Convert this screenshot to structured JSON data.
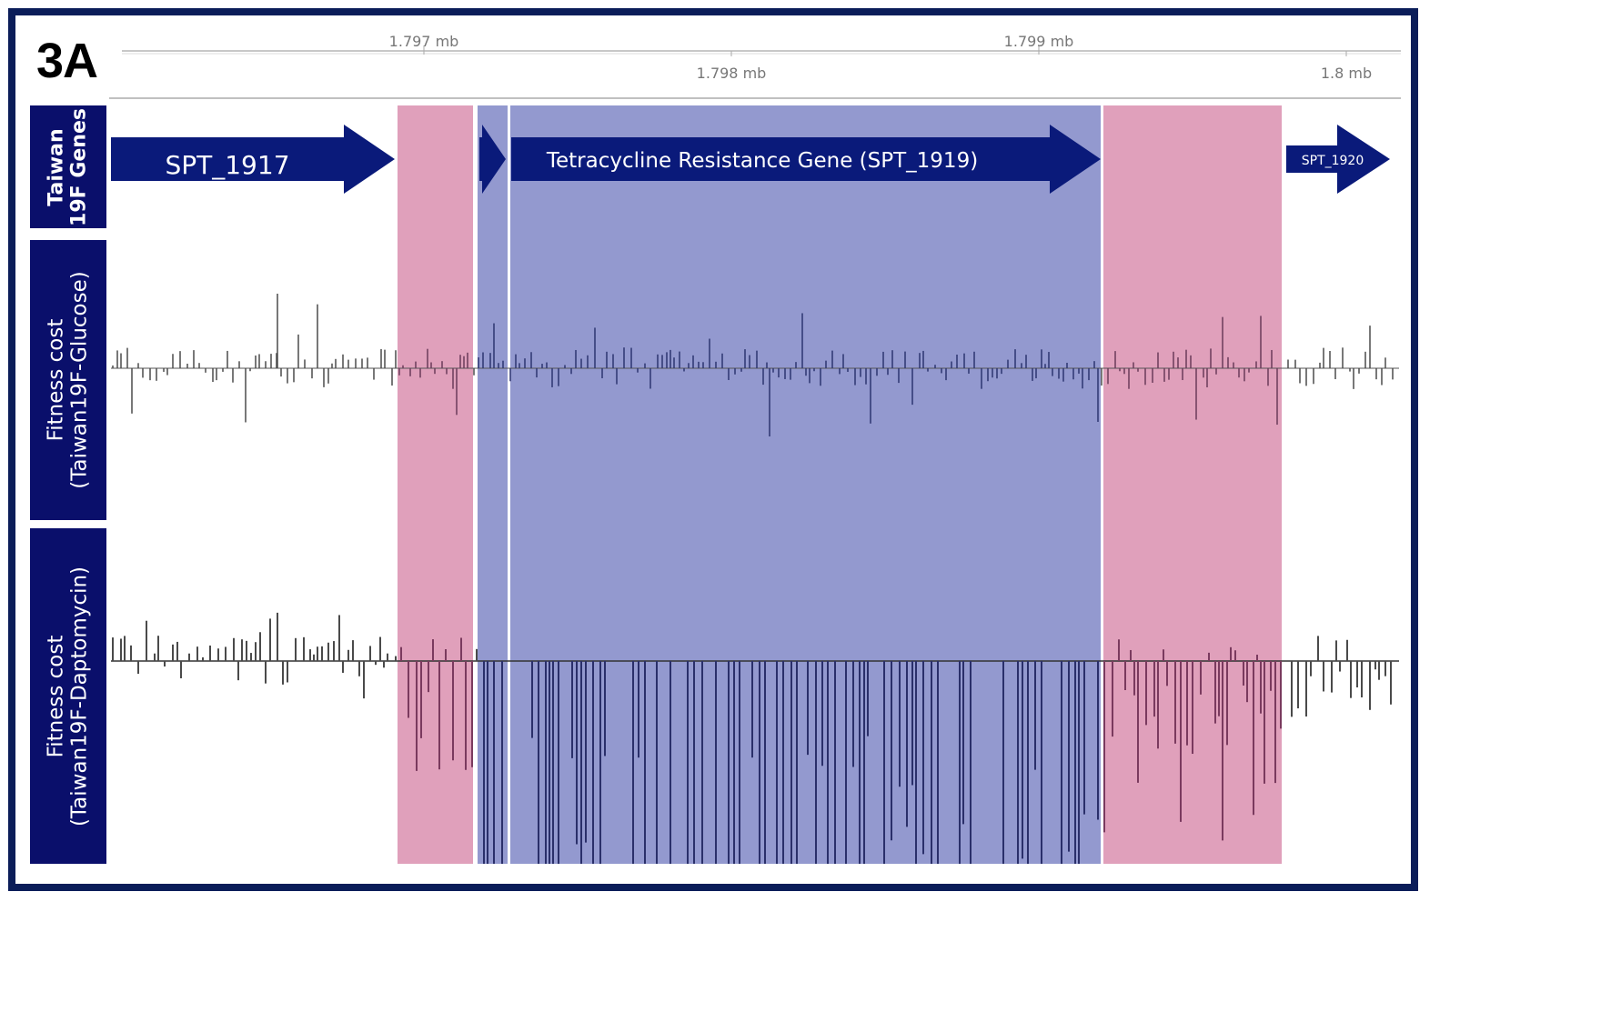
{
  "panel_label": "3A",
  "ruler": {
    "ticks_top": [
      "1.797 mb",
      "1.799 mb"
    ],
    "ticks_bottom": [
      "1.798 mb",
      "1.8 mb"
    ]
  },
  "tracks": {
    "genes_label": [
      "Taiwan",
      "19F Genes"
    ],
    "glucose_label": [
      "Fitness cost",
      "(Taiwan19F-Glucose)"
    ],
    "daptomycin_label": [
      "Fitness cost",
      "(Taiwan19F-Daptomycin)"
    ]
  },
  "genes": [
    {
      "id": "spt1917",
      "label": "SPT_1917"
    },
    {
      "id": "small",
      "label": ""
    },
    {
      "id": "spt1919",
      "label": "Tetracycline Resistance Gene (SPT_1919)"
    },
    {
      "id": "spt1920",
      "label": "SPT_1920"
    }
  ],
  "highlights": [
    {
      "role": "flank-left",
      "color": "#e0a0bb"
    },
    {
      "role": "gene-small",
      "color": "#9399cf"
    },
    {
      "role": "gene-tet",
      "color": "#9399cf"
    },
    {
      "role": "flank-right",
      "color": "#e0a0bb"
    }
  ],
  "colors": {
    "frame": "#0b1d59",
    "track_label_bg": "#0a0f6b",
    "gene_arrow": "#0a1a7a",
    "bar": "#3b3b3b",
    "axis_line": "#555555"
  },
  "icons": {
    "gene": "right-arrow-shape"
  }
}
